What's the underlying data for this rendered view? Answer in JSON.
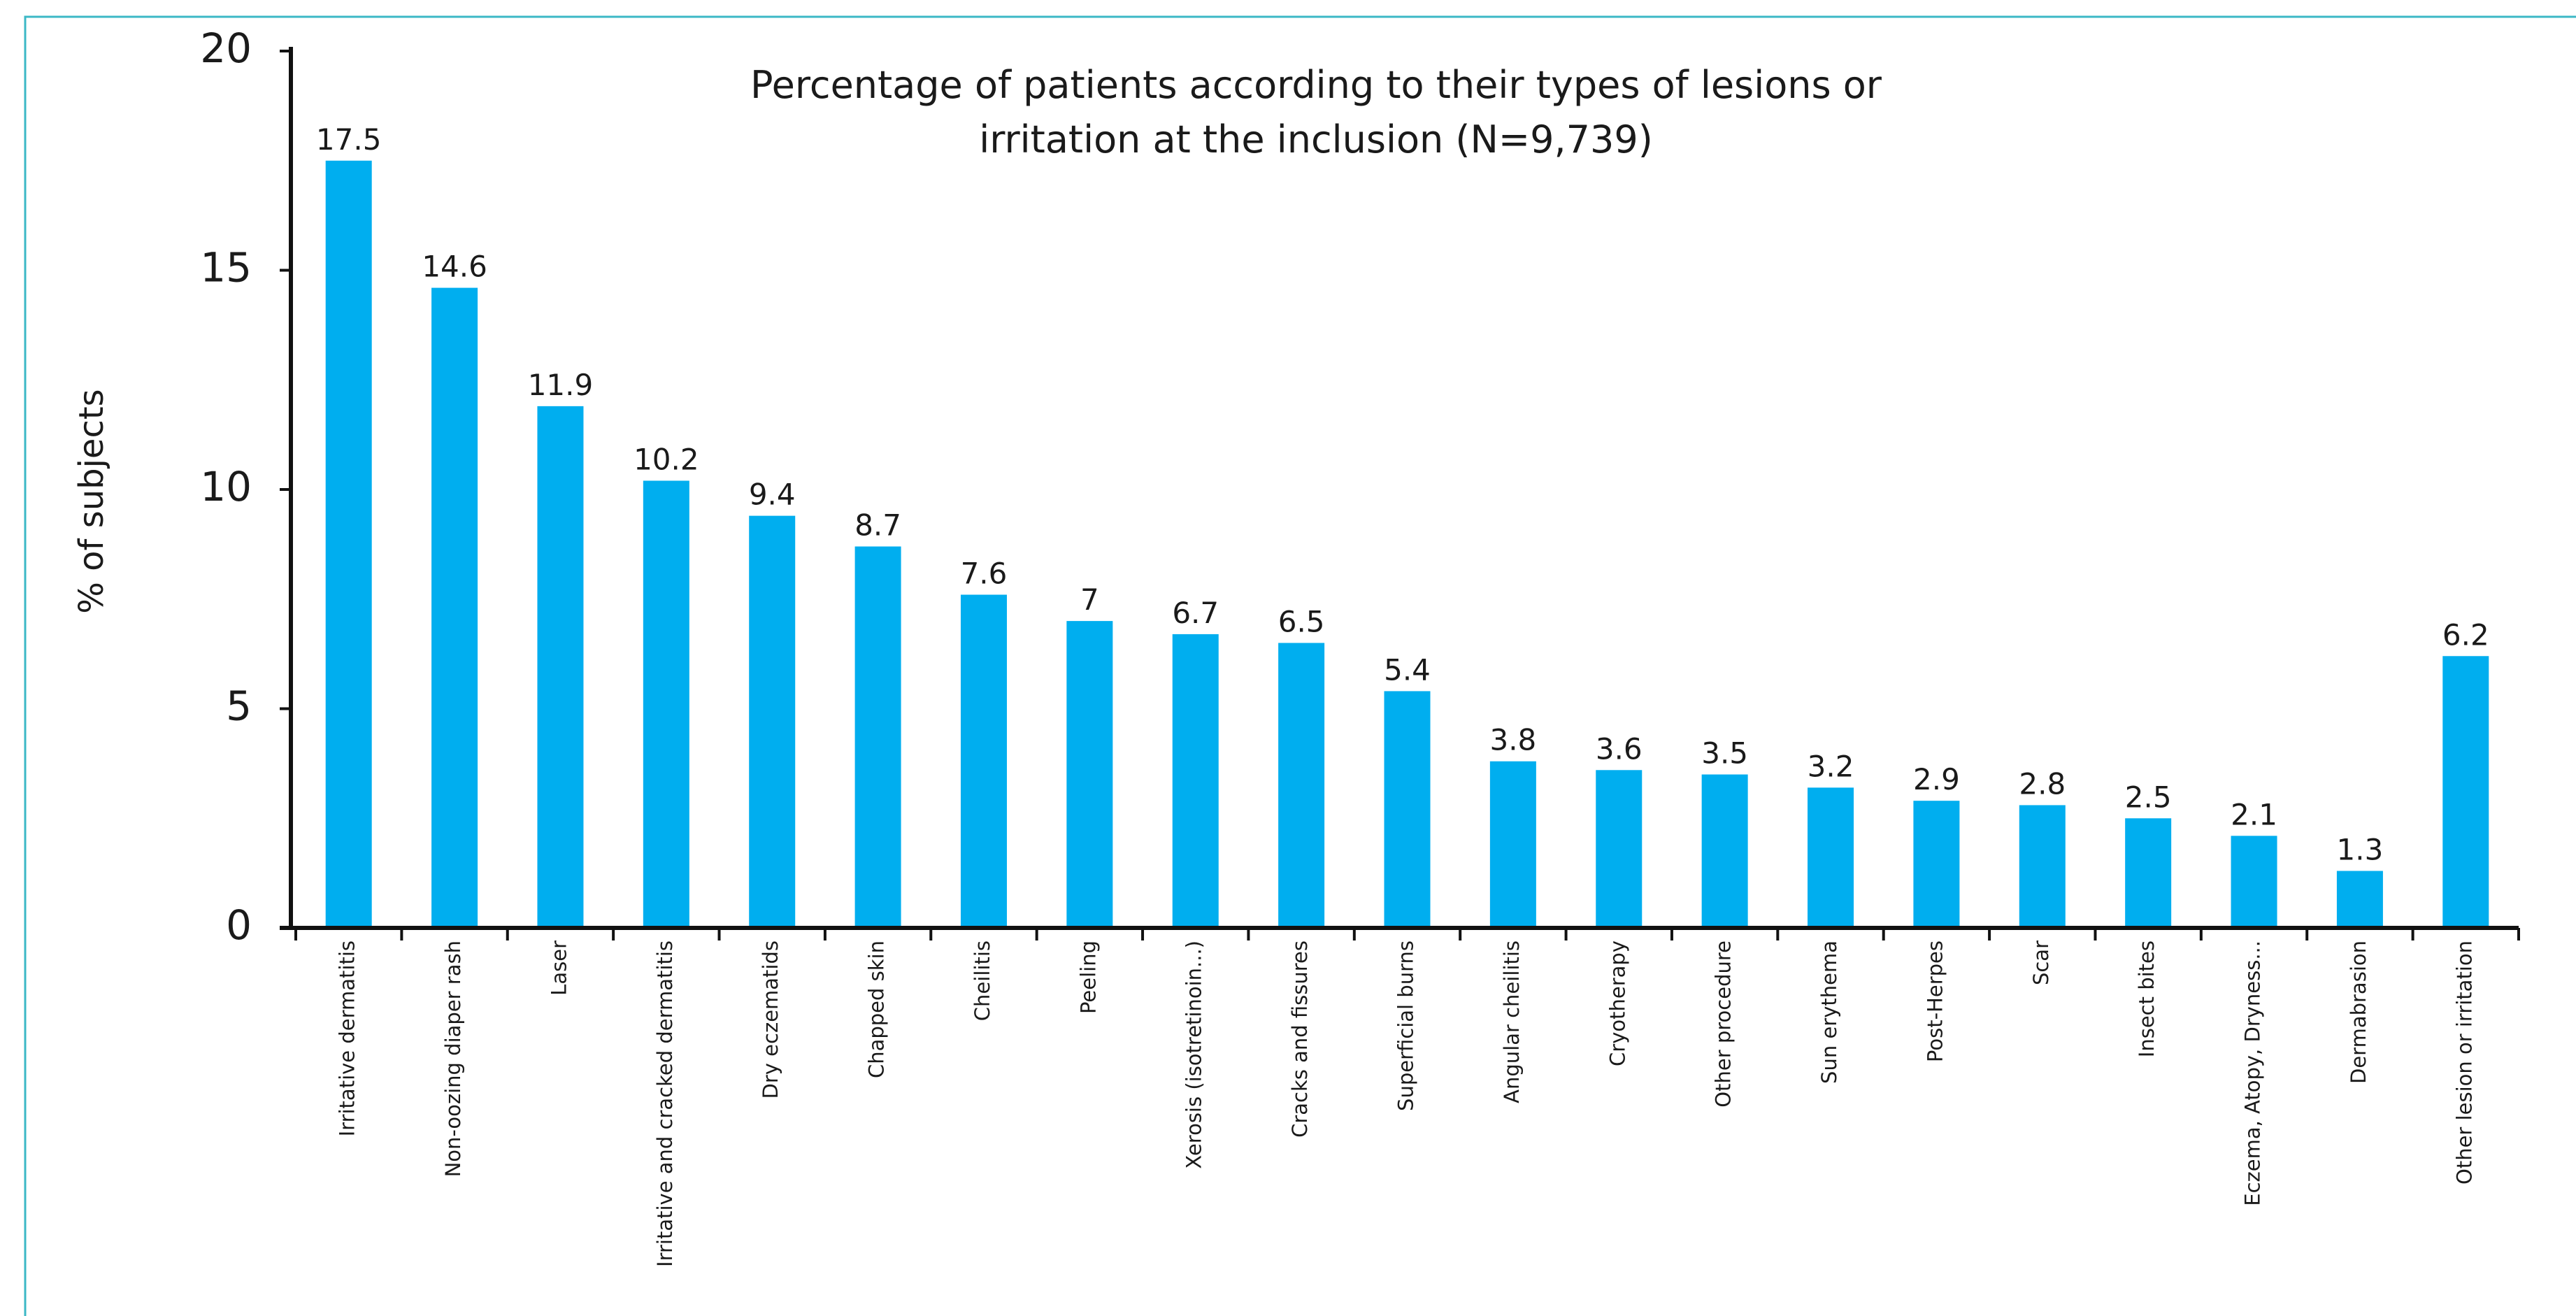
{
  "chart_data": {
    "type": "bar",
    "title": [
      "Percentage of patients according to their types of lesions or",
      "irritation at the inclusion (N=9,739)"
    ],
    "y_label": "% of subjects",
    "categories": [
      "Irritative dermatitis",
      "Non-oozing diaper rash",
      "Laser",
      "Irritative and cracked dermatitis",
      "Dry eczematids",
      "Chapped skin",
      "Cheilitis",
      "Peeling",
      "Xerosis (isotretinoin...)",
      "Cracks and fissures",
      "Superficial burns",
      "Angular cheilitis",
      "Cryotherapy",
      "Other procedure",
      "Sun erythema",
      "Post-Herpes",
      "Scar",
      "Insect bites",
      "Eczema, Atopy, Dryness...",
      "Dermabrasion",
      "Other lesion or irritation"
    ],
    "values": [
      17.5,
      14.6,
      11.9,
      10.2,
      9.4,
      8.7,
      7.6,
      7,
      6.7,
      6.5,
      5.4,
      3.8,
      3.6,
      3.5,
      3.2,
      2.9,
      2.8,
      2.5,
      2.1,
      1.3,
      6.2
    ],
    "color": "#00aeef",
    "ylim": [
      0,
      20
    ],
    "yticks": [
      0,
      5,
      10,
      15,
      20
    ],
    "grid": false
  }
}
